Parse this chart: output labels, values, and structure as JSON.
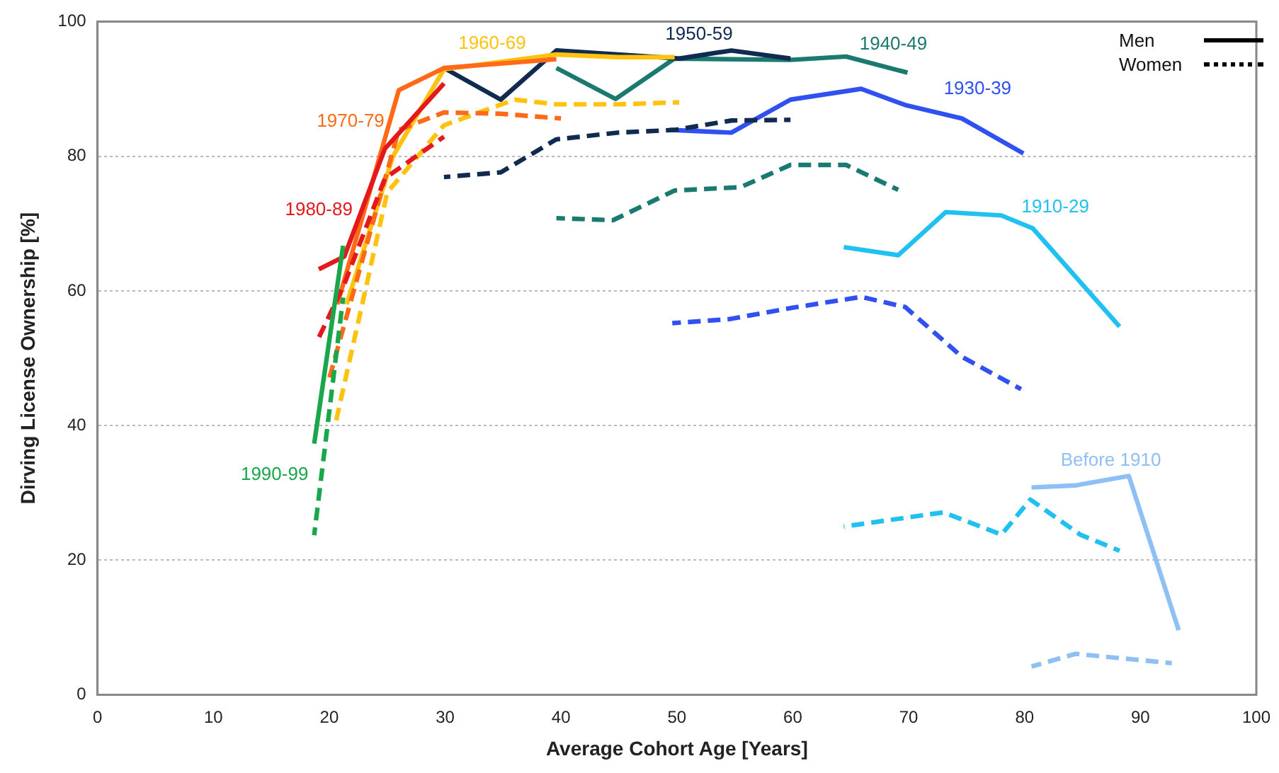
{
  "chart_data": {
    "type": "line",
    "xlabel": "Average Cohort Age [Years]",
    "ylabel": "Dirving License Ownership [%]",
    "xlim": [
      0,
      100
    ],
    "xticks": [
      0,
      10,
      20,
      30,
      40,
      50,
      60,
      70,
      80,
      90,
      100
    ],
    "ylim": [
      0,
      100
    ],
    "yticks": [
      0,
      20,
      40,
      60,
      80,
      100
    ],
    "grid": "y",
    "marker": "none",
    "annotations": [
      "Men",
      "Women"
    ],
    "series": [
      {
        "name": "1990-99",
        "color": "#1aa64b",
        "line_style": "solid",
        "x": [
          18.7,
          21.2
        ],
        "values": [
          37.3,
          66.7
        ]
      },
      {
        "color": "#1aa64b",
        "line_style": "dashed",
        "x": [
          18.7,
          21.2
        ],
        "values": [
          23.7,
          59
        ]
      },
      {
        "name": "1980-89",
        "color": "#e3191c",
        "line_style": "solid",
        "x": [
          19.1,
          21.3,
          24.8,
          29.9
        ],
        "values": [
          63.2,
          65.1,
          81.1,
          90.8
        ]
      },
      {
        "color": "#e3191c",
        "line_style": "dashed",
        "x": [
          19.0,
          21.3,
          24.8,
          29.9
        ],
        "values": [
          52.7,
          61,
          76.7,
          82.9
        ]
      },
      {
        "name": "1970-79",
        "color": "#ff6a19",
        "line_style": "solid",
        "x": [
          20.7,
          26.0,
          29.9,
          39.6
        ],
        "values": [
          58,
          89.8,
          93.1,
          94.4
        ]
      },
      {
        "color": "#ff6a19",
        "line_style": "dashed",
        "x": [
          20.0,
          26.0,
          29.9,
          34.8,
          40.0
        ],
        "values": [
          47,
          83.9,
          86.5,
          86.3,
          85.6
        ]
      },
      {
        "name": "1960-69",
        "color": "#ffc20e",
        "line_style": "solid",
        "x": [
          21.5,
          25.5,
          29.9,
          39.6,
          44.9,
          49.8
        ],
        "values": [
          58,
          80,
          92.9,
          95.1,
          94.7,
          94.7
        ]
      },
      {
        "color": "#ffc20e",
        "line_style": "dashed",
        "x": [
          20.5,
          25,
          29.9,
          36,
          39.6,
          44.9,
          50.2
        ],
        "values": [
          40,
          74.6,
          84.6,
          88.4,
          87.7,
          87.7,
          88.0
        ]
      },
      {
        "name": "1950-59",
        "color": "#102a50",
        "line_style": "solid",
        "x": [
          29.9,
          34.8,
          39.6,
          50.2,
          54.7,
          59.8
        ],
        "values": [
          93.1,
          88.4,
          95.7,
          94.5,
          95.7,
          94.5
        ]
      },
      {
        "color": "#102a50",
        "line_style": "dashed",
        "x": [
          29.9,
          34.8,
          39.6,
          44.9,
          49.8,
          54.7,
          59.8
        ],
        "values": [
          76.9,
          77.6,
          82.5,
          83.5,
          83.9,
          85.3,
          85.4
        ]
      },
      {
        "name": "1940-49",
        "color": "#1a7a70",
        "line_style": "solid",
        "x": [
          39.6,
          44.7,
          49.8,
          59.8,
          64.6,
          69.9
        ],
        "values": [
          93.1,
          88.5,
          94.5,
          94.3,
          94.8,
          92.4
        ]
      },
      {
        "color": "#1a7a70",
        "line_style": "dashed",
        "x": [
          39.6,
          44.5,
          49.8,
          55.5,
          59.8,
          64.6,
          69.1
        ],
        "values": [
          70.8,
          70.5,
          74.9,
          75.4,
          78.7,
          78.7,
          75.0
        ]
      },
      {
        "name": "1930-39",
        "color": "#3050f0",
        "line_style": "solid",
        "x": [
          49.4,
          54.7,
          59.8,
          65.9,
          69.7,
          74.6,
          79.9
        ],
        "values": [
          83.9,
          83.5,
          88.4,
          90.0,
          87.6,
          85.6,
          80.4
        ]
      },
      {
        "color": "#3050f0",
        "line_style": "dashed",
        "x": [
          49.6,
          54.5,
          60,
          65.9,
          69.7,
          74.6,
          79.7
        ],
        "values": [
          55.2,
          55.8,
          57.5,
          59.1,
          57.6,
          50.2,
          45.4
        ]
      },
      {
        "name": "1910-29",
        "color": "#20c0f0",
        "line_style": "solid",
        "x": [
          64.4,
          69.1,
          73.2,
          78,
          80.7,
          88.2
        ],
        "values": [
          66.5,
          65.3,
          71.7,
          71.2,
          69.3,
          54.7
        ]
      },
      {
        "color": "#20c0f0",
        "line_style": "dashed",
        "x": [
          64.4,
          73,
          78,
          80.5,
          84.8,
          88.2
        ],
        "values": [
          25,
          27.1,
          23.8,
          29,
          23.8,
          21.4
        ]
      },
      {
        "name": "Before 1910",
        "color": "#8ec0f5",
        "line_style": "solid",
        "x": [
          80.6,
          84.4,
          89,
          93.3
        ],
        "values": [
          30.8,
          31.1,
          32.5,
          9.6
        ]
      },
      {
        "color": "#8ec0f5",
        "line_style": "dashed",
        "x": [
          80.6,
          84.4,
          92.7
        ],
        "values": [
          4.2,
          6.1,
          4.7
        ]
      }
    ]
  }
}
